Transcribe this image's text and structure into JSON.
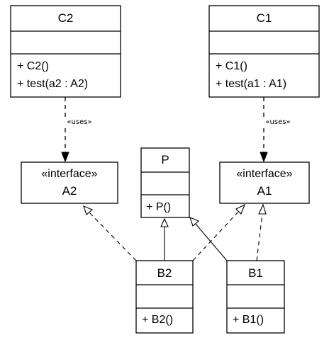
{
  "classes": {
    "C2": {
      "name": "C2",
      "attributes": [],
      "operations": [
        "+ C2()",
        "+ test(a2 : A2)"
      ]
    },
    "C1": {
      "name": "C1",
      "attributes": [],
      "operations": [
        "+ C1()",
        "+ test(a1 : A1)"
      ]
    },
    "A2": {
      "stereotype": "«interface»",
      "name": "A2"
    },
    "A1": {
      "stereotype": "«interface»",
      "name": "A1"
    },
    "P": {
      "name": "P",
      "attributes": [],
      "operations": [
        "+ P()"
      ]
    },
    "B2": {
      "name": "B2",
      "attributes": [],
      "operations": [
        "+ B2()"
      ]
    },
    "B1": {
      "name": "B1",
      "attributes": [],
      "operations": [
        "+ B1()"
      ]
    }
  },
  "relations": {
    "c2_uses_a2": {
      "type": "dependency",
      "label": "«uses»"
    },
    "c1_uses_a1": {
      "type": "dependency",
      "label": "«uses»"
    },
    "b2_realizes_a2": {
      "type": "realization"
    },
    "b2_extends_p": {
      "type": "generalization"
    },
    "b2_realizes_a1": {
      "type": "realization"
    },
    "b1_extends_p": {
      "type": "generalization"
    },
    "b1_realizes_a1": {
      "type": "realization"
    }
  }
}
